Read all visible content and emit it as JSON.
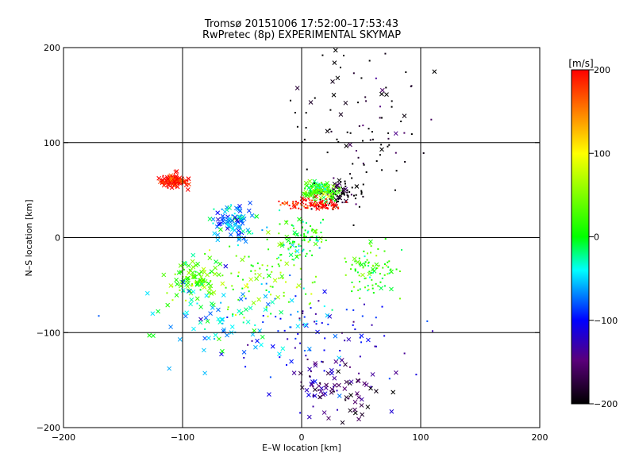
{
  "chart_data": {
    "type": "scatter",
    "title": "Tromsø 20151006 17:52:00–17:53:43",
    "subtitle": "RwPretec (8p) EXPERIMENTAL SKYMAP",
    "xlabel": "E–W location [km]",
    "ylabel": "N–S location [km]",
    "xlim": [
      -200,
      200
    ],
    "ylim": [
      -200,
      200
    ],
    "x_ticks": [
      "−200",
      "−100",
      "0",
      "100",
      "200"
    ],
    "y_ticks": [
      "−200",
      "−100",
      "0",
      "100",
      "200"
    ],
    "grid": true,
    "marker_types": [
      "point",
      "x"
    ],
    "colorbar": {
      "label": "[m/s]",
      "range": [
        -200,
        200
      ],
      "ticks": [
        "200",
        "100",
        "0",
        "−100",
        "−200"
      ],
      "colormap": [
        "#000000",
        "#5a007a",
        "#0000ff",
        "#00ffff",
        "#00ff00",
        "#ffff00",
        "#ff0000"
      ]
    },
    "clusters": [
      {
        "center": [
          -107,
          60
        ],
        "spread": [
          8,
          5
        ],
        "velocity": 200,
        "marker": "x"
      },
      {
        "center": [
          30,
          45
        ],
        "spread": [
          15,
          10
        ],
        "velocity": -200,
        "marker": "point"
      },
      {
        "center": [
          15,
          50
        ],
        "spread": [
          10,
          7
        ],
        "velocity": 20,
        "marker": "x"
      },
      {
        "center": [
          0,
          0
        ],
        "spread": [
          15,
          15
        ],
        "velocity": 10,
        "marker": "point"
      },
      {
        "center": [
          10,
          35
        ],
        "spread": [
          20,
          5
        ],
        "velocity": 200,
        "marker": "point"
      },
      {
        "center": [
          -55,
          15
        ],
        "spread": [
          15,
          15
        ],
        "velocity": -60,
        "marker": "x"
      },
      {
        "center": [
          60,
          -35
        ],
        "spread": [
          15,
          20
        ],
        "velocity": 20,
        "marker": "point"
      },
      {
        "center": [
          -90,
          -45
        ],
        "spread": [
          15,
          15
        ],
        "velocity": 30,
        "marker": "x"
      },
      {
        "center": [
          20,
          -100
        ],
        "spread": [
          50,
          30
        ],
        "velocity": -100,
        "marker": "point"
      },
      {
        "center": [
          -60,
          -80
        ],
        "spread": [
          50,
          30
        ],
        "velocity": -50,
        "marker": "x"
      },
      {
        "center": [
          50,
          120
        ],
        "spread": [
          40,
          50
        ],
        "velocity": -200,
        "marker": "point"
      },
      {
        "center": [
          -30,
          -40
        ],
        "spread": [
          30,
          30
        ],
        "velocity": 40,
        "marker": "point"
      },
      {
        "center": [
          30,
          -160
        ],
        "spread": [
          30,
          20
        ],
        "velocity": -150,
        "marker": "x"
      }
    ]
  }
}
